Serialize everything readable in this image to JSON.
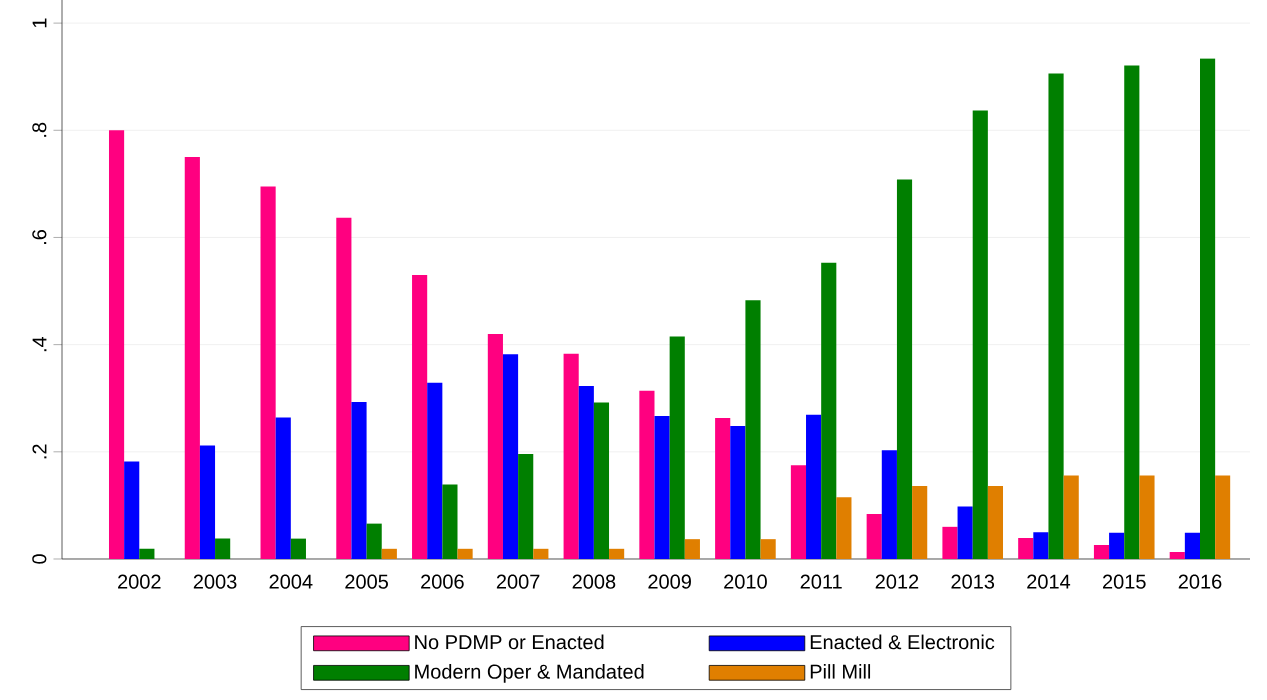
{
  "chart_data": {
    "type": "bar",
    "categories": [
      "2002",
      "2003",
      "2004",
      "2005",
      "2006",
      "2007",
      "2008",
      "2009",
      "2010",
      "2011",
      "2012",
      "2013",
      "2014",
      "2015",
      "2016"
    ],
    "series": [
      {
        "name": "No PDMP or Enacted",
        "color": "#ff0080",
        "values": [
          0.8,
          0.75,
          0.695,
          0.637,
          0.53,
          0.42,
          0.383,
          0.314,
          0.263,
          0.175,
          0.084,
          0.06,
          0.039,
          0.026,
          0.013
        ]
      },
      {
        "name": "Enacted & Electronic",
        "color": "#0000ff",
        "values": [
          0.182,
          0.212,
          0.264,
          0.293,
          0.329,
          0.382,
          0.323,
          0.267,
          0.248,
          0.269,
          0.203,
          0.098,
          0.05,
          0.049,
          0.049
        ]
      },
      {
        "name": "Modern Oper & Mandated",
        "color": "#007f00",
        "values": [
          0.019,
          0.038,
          0.038,
          0.066,
          0.139,
          0.196,
          0.292,
          0.415,
          0.483,
          0.553,
          0.708,
          0.837,
          0.906,
          0.921,
          0.934
        ]
      },
      {
        "name": "Pill Mill",
        "color": "#e07f00",
        "values": [
          0,
          0,
          0,
          0.019,
          0.019,
          0.019,
          0.019,
          0.037,
          0.037,
          0.115,
          0.136,
          0.136,
          0.156,
          0.156,
          0.156
        ]
      }
    ],
    "ylim": [
      0,
      1.045
    ],
    "yticks": [
      0,
      {
        "value": 0.2,
        "label": ".2"
      },
      {
        "value": 0.4,
        "label": ".4"
      },
      {
        "value": 0.6,
        "label": ".6"
      },
      {
        "value": 0.8,
        "label": ".8"
      },
      1
    ],
    "grid": "y",
    "legend": "bottom"
  }
}
